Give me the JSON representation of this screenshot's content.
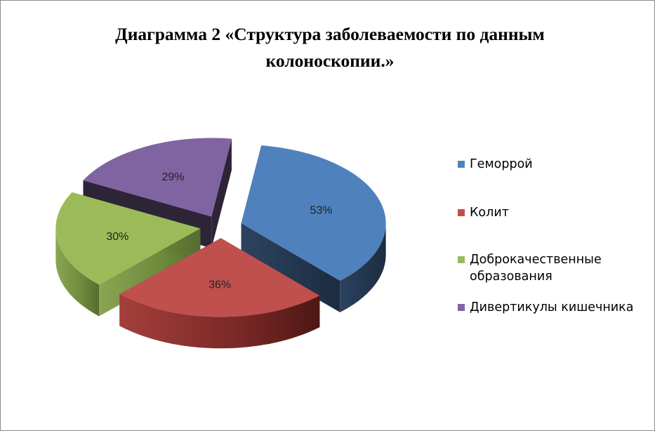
{
  "chart_data": {
    "type": "pie",
    "title_lines": [
      "Диаграмма 2  «Структура заболеваемости по данным",
      "колоноскопии.»"
    ],
    "slices": [
      {
        "label": "Геморрой",
        "value": 53,
        "display": "53%",
        "color": "#4f81bd"
      },
      {
        "label": "Колит",
        "value": 36,
        "display": "36%",
        "color": "#c0504d"
      },
      {
        "label": "Доброкачественные образования",
        "value": 30,
        "display": "30%",
        "color": "#9bbb59"
      },
      {
        "label": "Дивертикулы кишечника",
        "value": 29,
        "display": "29%",
        "color": "#8064a2"
      }
    ],
    "legend_position": "right",
    "exploded": true,
    "three_d": true
  },
  "legend_text": {
    "item0": "Геморрой",
    "item1": "Колит",
    "item2a": "Доброкачественные",
    "item2b": "образования",
    "item3": "Дивертикулы кишечника"
  }
}
